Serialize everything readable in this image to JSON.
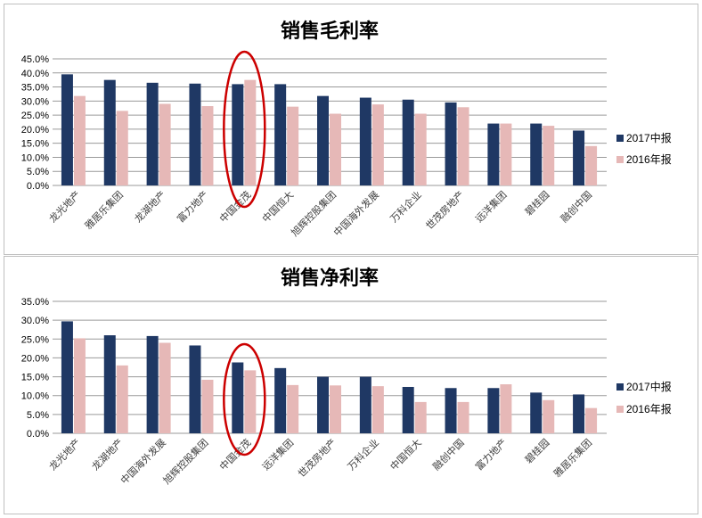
{
  "colors": {
    "series_2017": "#1f3864",
    "series_2016": "#e6b8b7",
    "grid": "#9a9a9a",
    "circle": "#cc0000"
  },
  "chart_data": [
    {
      "type": "bar",
      "title": "销售毛利率",
      "ylim": [
        0,
        45
      ],
      "yticks": [
        "0.0%",
        "5.0%",
        "10.0%",
        "15.0%",
        "20.0%",
        "25.0%",
        "30.0%",
        "35.0%",
        "40.0%",
        "45.0%"
      ],
      "categories": [
        "龙光地产",
        "雅居乐集团",
        "龙湖地产",
        "富力地产",
        "中国金茂",
        "中国恒大",
        "旭辉控股集团",
        "中国海外发展",
        "万科企业",
        "世茂房地产",
        "远洋集团",
        "碧桂园",
        "融创中国"
      ],
      "series": [
        {
          "name": "2017中报",
          "values": [
            39.5,
            37.5,
            36.5,
            36.2,
            36.0,
            36.0,
            31.8,
            31.2,
            30.5,
            29.5,
            22.0,
            22.0,
            19.5
          ]
        },
        {
          "name": "2016年报",
          "values": [
            31.8,
            26.5,
            29.0,
            28.2,
            37.5,
            28.0,
            25.5,
            28.8,
            25.5,
            27.8,
            22.0,
            21.2,
            14.0
          ]
        }
      ],
      "legend": "right",
      "grid": true,
      "highlight": "中国金茂"
    },
    {
      "type": "bar",
      "title": "销售净利率",
      "ylim": [
        0,
        35
      ],
      "yticks": [
        "0.0%",
        "5.0%",
        "10.0%",
        "15.0%",
        "20.0%",
        "25.0%",
        "30.0%",
        "35.0%"
      ],
      "categories": [
        "龙光地产",
        "龙湖地产",
        "中国海外发展",
        "旭辉控股集团",
        "中国金茂",
        "远洋集团",
        "世茂房地产",
        "万科企业",
        "中国恒大",
        "融创中国",
        "富力地产",
        "碧桂园",
        "雅居乐集团"
      ],
      "series": [
        {
          "name": "2017中报",
          "values": [
            29.7,
            26.0,
            25.8,
            23.3,
            18.8,
            17.3,
            15.0,
            15.0,
            12.3,
            12.0,
            12.0,
            10.8,
            10.3
          ]
        },
        {
          "name": "2016年报",
          "values": [
            25.2,
            18.0,
            24.0,
            14.2,
            16.7,
            12.8,
            12.7,
            12.5,
            8.3,
            8.3,
            13.0,
            8.8,
            6.7
          ]
        }
      ],
      "legend": "right",
      "grid": true,
      "highlight": "中国金茂"
    }
  ]
}
